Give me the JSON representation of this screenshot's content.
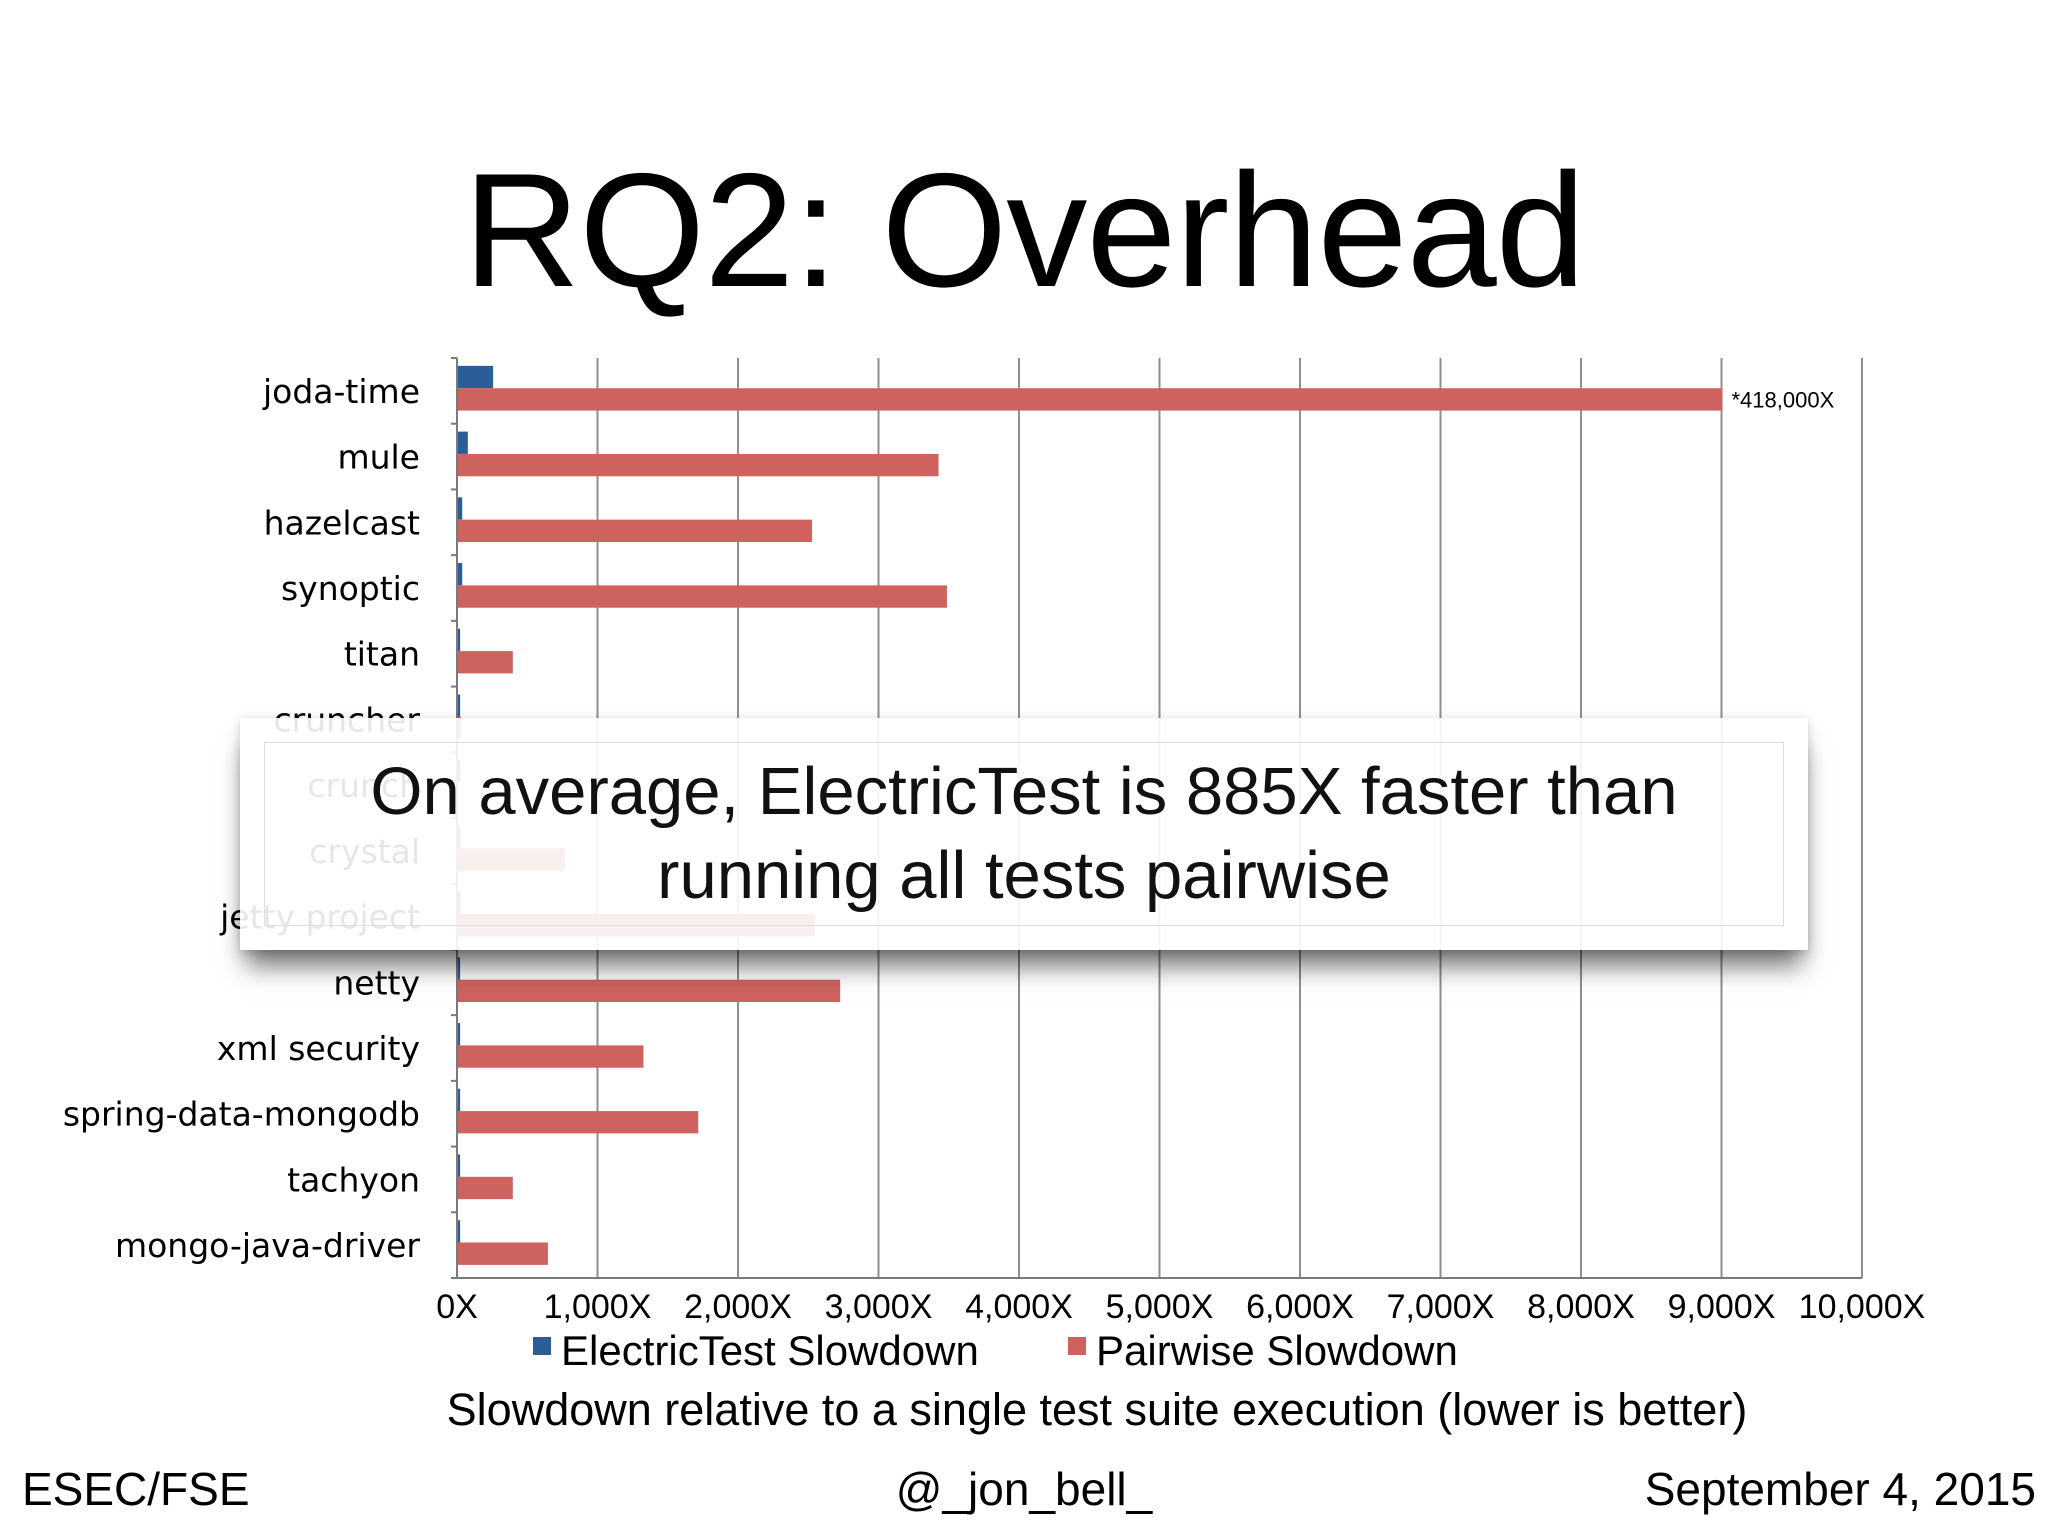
{
  "slide": {
    "title": "RQ2: Overhead",
    "callout": "On average, ElectricTest is 885X faster than running all tests pairwise",
    "footer": {
      "left": "ESEC/FSE",
      "center": "@_jon_bell_",
      "right": "September 4, 2015"
    }
  },
  "chart_data": {
    "type": "bar",
    "orientation": "horizontal",
    "categories": [
      "joda-time",
      "mule",
      "hazelcast",
      "synoptic",
      "titan",
      "cruncher",
      "crunch",
      "crystal",
      "jetty project",
      "netty",
      "xml security",
      "spring-data-mongodb",
      "tachyon",
      "mongo-java-driver"
    ],
    "series": [
      {
        "name": "ElectricTest Slowdown",
        "color": "#2b5e99",
        "values": [
          250,
          70,
          30,
          30,
          15,
          15,
          15,
          15,
          15,
          15,
          15,
          15,
          15,
          15
        ]
      },
      {
        "name": "Pairwise Slowdown",
        "color": "#cd625f",
        "values": [
          9000,
          3420,
          2520,
          3480,
          390,
          20,
          0,
          760,
          2540,
          2720,
          1320,
          1710,
          390,
          640
        ]
      }
    ],
    "annotations": [
      {
        "category": "joda-time",
        "series": "Pairwise Slowdown",
        "text": "*418,000X"
      }
    ],
    "x_ticks": [
      "0X",
      "1,000X",
      "2,000X",
      "3,000X",
      "4,000X",
      "5,000X",
      "6,000X",
      "7,000X",
      "8,000X",
      "9,000X",
      "10,000X"
    ],
    "xlim": [
      0,
      10000
    ],
    "xlabel": "Slowdown relative to a single test suite execution (lower is better)",
    "ylabel": "",
    "grid": "vertical",
    "legend": "bottom"
  }
}
